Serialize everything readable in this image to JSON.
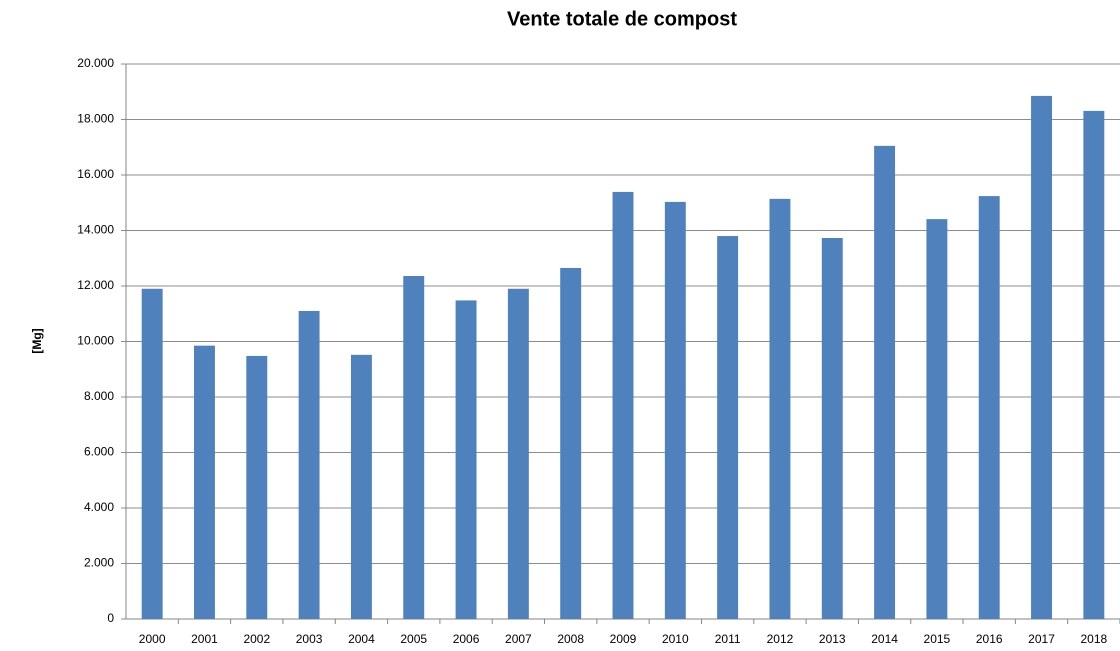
{
  "chart_data": {
    "type": "bar",
    "title": "Vente totale de compost",
    "y_label": "[Mg]",
    "categories": [
      "2000",
      "2001",
      "2002",
      "2003",
      "2004",
      "2005",
      "2006",
      "2007",
      "2008",
      "2009",
      "2010",
      "2011",
      "2012",
      "2013",
      "2014",
      "2015",
      "2016",
      "2017",
      "2018"
    ],
    "values": [
      11900,
      9850,
      9480,
      11100,
      9520,
      12360,
      11480,
      11900,
      12650,
      15390,
      15030,
      13800,
      15140,
      13730,
      17050,
      14410,
      15240,
      18850,
      18310
    ],
    "color": "#4f81bd",
    "ylim": [
      0,
      20000
    ],
    "yticks": [
      0,
      {
        "value": 2000,
        "label": "2.000"
      },
      {
        "value": 4000,
        "label": "4.000"
      },
      {
        "value": 6000,
        "label": "6.000"
      },
      {
        "value": 8000,
        "label": "8.000"
      },
      {
        "value": 10000,
        "label": "10.000"
      },
      {
        "value": 12000,
        "label": "12.000"
      },
      {
        "value": 14000,
        "label": "14.000"
      },
      {
        "value": 16000,
        "label": "16.000"
      },
      {
        "value": 18000,
        "label": "18.000"
      },
      {
        "value": 20000,
        "label": "20.000"
      }
    ],
    "grid": true
  }
}
